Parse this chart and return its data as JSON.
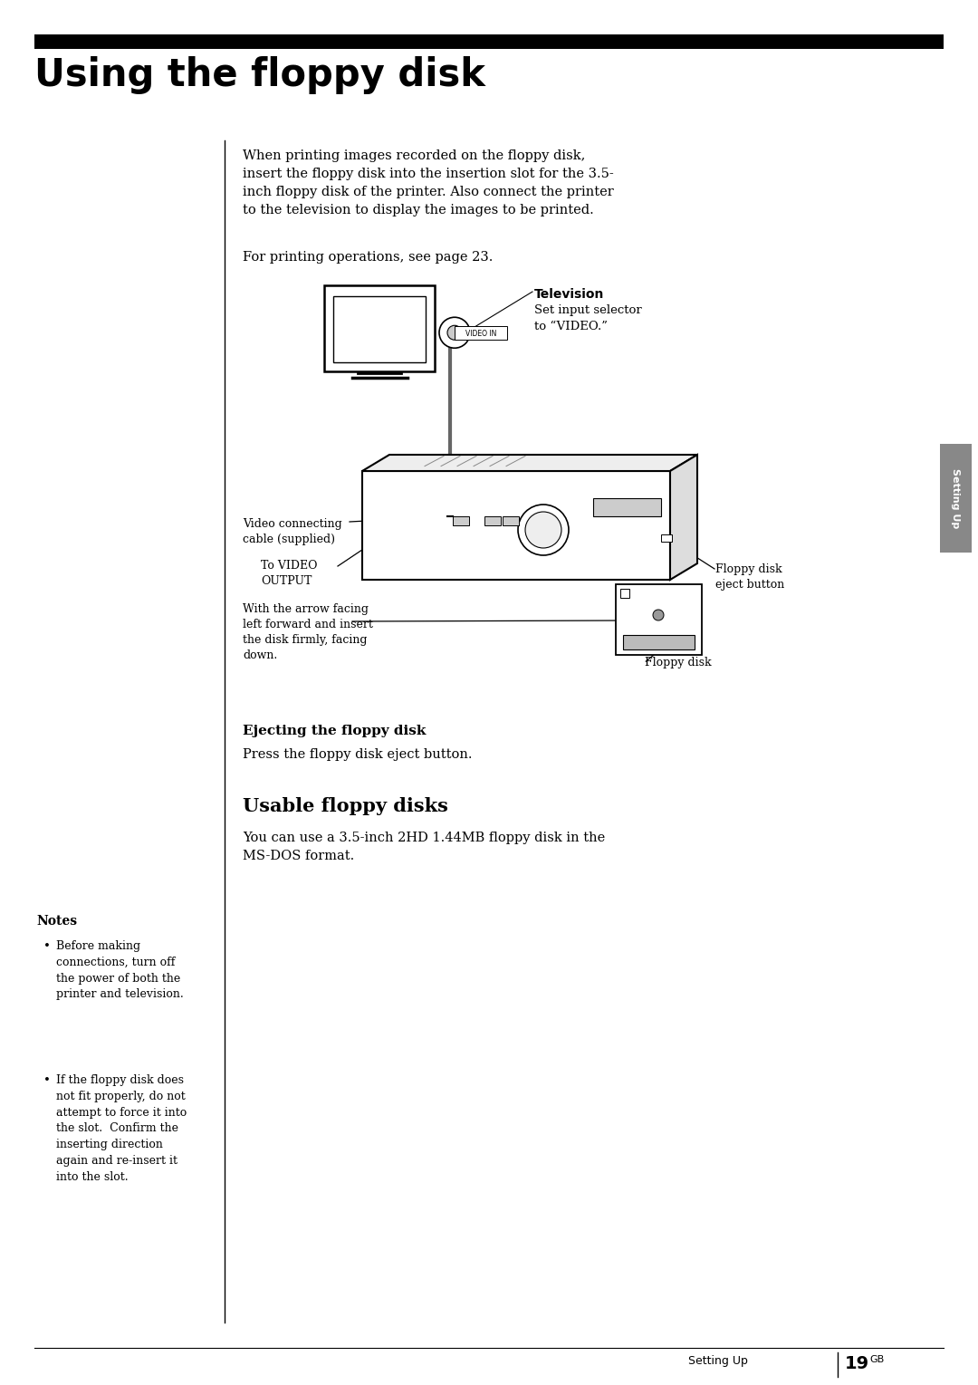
{
  "page_bg": "#ffffff",
  "title_bar_color": "#000000",
  "title_text": "Using the floppy disk",
  "title_fontsize": 30,
  "title_font_weight": "bold",
  "body_text_1": "When printing images recorded on the floppy disk,\ninsert the floppy disk into the insertion slot for the 3.5-\ninch floppy disk of the printer. Also connect the printer\nto the television to display the images to be printed.",
  "body_text_2": "For printing operations, see page 23.",
  "section_label_1": "Ejecting the floppy disk",
  "section_body_1": "Press the floppy disk eject button.",
  "section_label_2": "Usable floppy disks",
  "section_body_2": "You can use a 3.5-inch 2HD 1.44MB floppy disk in the\nMS-DOS format.",
  "tv_label_bold": "Television",
  "tv_label_body": "Set input selector\nto “VIDEO.”",
  "video_in_label": "VIDEO IN",
  "video_connecting_label": "Video connecting\ncable (supplied)",
  "video_output_label": "To VIDEO\nOUTPUT",
  "floppy_eject_label": "Floppy disk\neject button",
  "floppy_disk_label": "Floppy disk",
  "floppy_insert_label": "With the arrow facing\nleft forward and insert\nthe disk firmly, facing\ndown.",
  "notes_title": "Notes",
  "notes_bullets": [
    "Before making\nconnections, turn off\nthe power of both the\nprinter and television.",
    "If the floppy disk does\nnot fit properly, do not\nattempt to force it into\nthe slot.  Confirm the\ninserting direction\nagain and re-insert it\ninto the slot."
  ],
  "side_tab_text": "Setting Up",
  "footer_text": "Setting Up",
  "footer_page": "19",
  "footer_superscript": "GB"
}
